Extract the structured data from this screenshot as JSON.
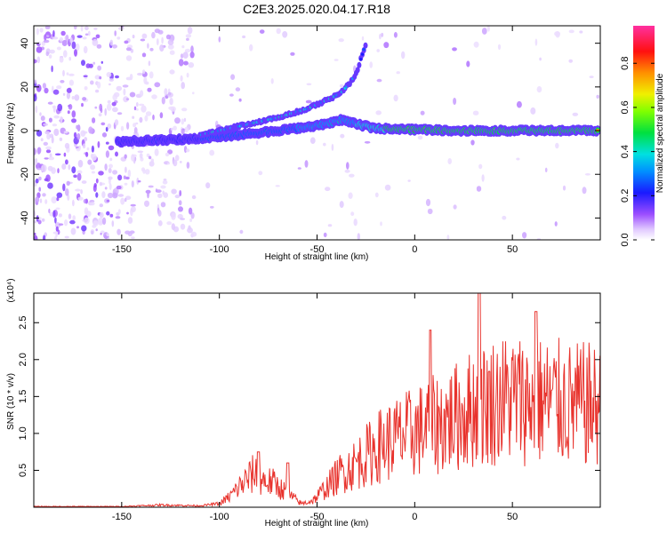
{
  "title": "C2E3.2025.020.04.17.R18",
  "colors": {
    "snr_line": "#e8322c",
    "frame": "#000000",
    "background": "#ffffff"
  },
  "chart_data": [
    {
      "type": "heatmap",
      "xlabel": "Height of straight line (km)",
      "ylabel": "Frequency (Hz)",
      "xlim": [
        -195,
        95
      ],
      "ylim": [
        -50,
        48
      ],
      "xticks": [
        -150,
        -100,
        -50,
        0,
        50
      ],
      "yticks": [
        -40,
        -20,
        0,
        20,
        40
      ],
      "colorbar": {
        "label": "Normalized spectral amplitude",
        "range": [
          0.0,
          0.97
        ],
        "ticks": [
          "0.0",
          "0.2",
          "0.4",
          "0.6",
          "0.8"
        ],
        "colormap": "white-purple-blue-cyan-green-yellow-orange-red-magenta"
      },
      "ridges": [
        {
          "x": [
            -150,
            -120,
            -100,
            -80,
            -60,
            -45,
            -38,
            -30,
            -20,
            0,
            20,
            50,
            90
          ],
          "y": [
            -5,
            -4,
            -3,
            -1,
            1,
            3,
            5,
            3,
            1,
            0.5,
            0,
            0,
            0
          ]
        },
        {
          "x": [
            -110,
            -90,
            -70,
            -55,
            -45,
            -38,
            -33,
            -30,
            -25
          ],
          "y": [
            -2,
            2,
            6,
            10,
            14,
            17,
            22,
            26,
            40
          ]
        }
      ]
    },
    {
      "type": "line",
      "xlabel": "Height of straight line (km)",
      "ylabel": "SNR (10 * v/v)",
      "y_multiplier": "(x10⁴)",
      "xlim": [
        -195,
        95
      ],
      "ylim": [
        0,
        2.9
      ],
      "xticks": [
        -150,
        -100,
        -50,
        0,
        50
      ],
      "yticks": [
        0.5,
        1.0,
        1.5,
        2.0,
        2.5
      ],
      "envelope": {
        "x": [
          -195,
          -150,
          -130,
          -110,
          -100,
          -95,
          -88,
          -82,
          -78,
          -72,
          -65,
          -58,
          -52,
          -45,
          -38,
          -32,
          -25,
          -18,
          -10,
          0,
          10,
          20,
          30,
          40,
          50,
          60,
          70,
          80,
          90,
          95
        ],
        "y": [
          0.01,
          0.01,
          0.03,
          0.02,
          0.05,
          0.15,
          0.35,
          0.5,
          0.4,
          0.35,
          0.2,
          0.05,
          0.1,
          0.3,
          0.5,
          0.6,
          0.75,
          0.9,
          1.0,
          1.1,
          1.2,
          1.3,
          1.45,
          1.55,
          1.6,
          1.55,
          1.55,
          1.5,
          1.5,
          1.45
        ]
      },
      "peaks": {
        "x": [
          -80,
          -65,
          8,
          33,
          62
        ],
        "y": [
          0.75,
          0.6,
          2.4,
          2.9,
          2.65
        ]
      }
    }
  ]
}
